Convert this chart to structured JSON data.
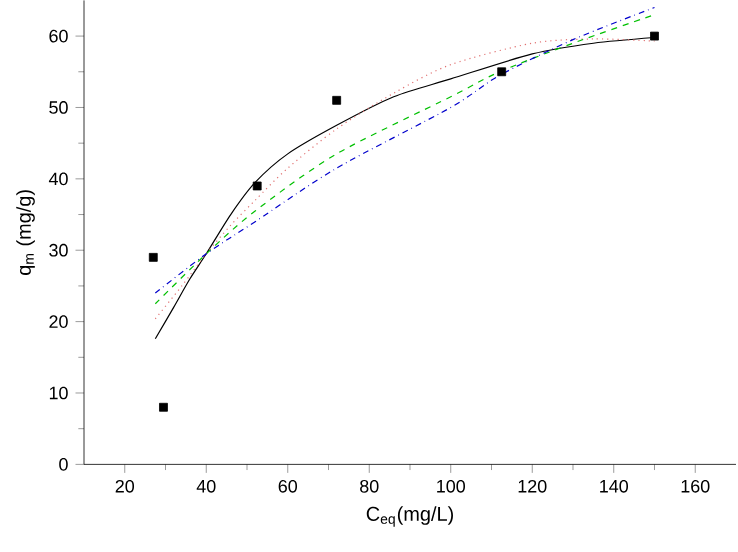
{
  "chart_data": {
    "type": "scatter",
    "xlabel": "C$_{eq}$(mg/L)",
    "ylabel": "q$_{m}$ (mg/g)",
    "xlim": [
      10,
      170
    ],
    "ylim": [
      0,
      65
    ],
    "xticks": [
      20,
      40,
      60,
      80,
      100,
      120,
      140,
      160
    ],
    "yticks": [
      0,
      10,
      20,
      30,
      40,
      50,
      60
    ],
    "grid": false,
    "series": [
      {
        "color": "#000000",
        "marker": "square",
        "x": [
          27,
          29.5,
          52.5,
          72,
          112.5,
          150
        ],
        "values": [
          29,
          8,
          39,
          51,
          55,
          60
        ]
      },
      {
        "type": "line",
        "color": "#000000",
        "line_style": "solid",
        "marker": "none",
        "x": [
          27.5,
          32,
          36,
          40,
          46,
          52,
          60,
          72,
          86,
          100,
          120,
          135,
          150
        ],
        "values": [
          17.6,
          22,
          26,
          29.5,
          35,
          39.5,
          43.5,
          47.5,
          51.5,
          54,
          57.5,
          59,
          59.8
        ]
      },
      {
        "type": "line",
        "color": "#e07070",
        "line_style": "dotted",
        "marker": "none",
        "x": [
          27.5,
          34,
          40,
          46,
          52,
          60,
          72,
          86,
          100,
          120,
          135,
          150
        ],
        "values": [
          20.4,
          25,
          29.5,
          33.5,
          37,
          41.5,
          47,
          52,
          56,
          59,
          59.6,
          59.3
        ]
      },
      {
        "type": "line",
        "color": "#00c000",
        "line_style": "dashed",
        "marker": "none",
        "x": [
          27.5,
          40,
          52,
          72,
          100,
          112,
          130,
          150
        ],
        "values": [
          22.5,
          29.5,
          35.5,
          43.5,
          51.5,
          55,
          59,
          63
        ]
      },
      {
        "type": "line",
        "color": "#0000cc",
        "line_style": "dashdot",
        "marker": "none",
        "x": [
          27.5,
          40,
          52,
          72,
          100,
          112,
          130,
          150
        ],
        "values": [
          24,
          29.5,
          34,
          41.5,
          50,
          54.5,
          59.5,
          64
        ]
      }
    ]
  }
}
